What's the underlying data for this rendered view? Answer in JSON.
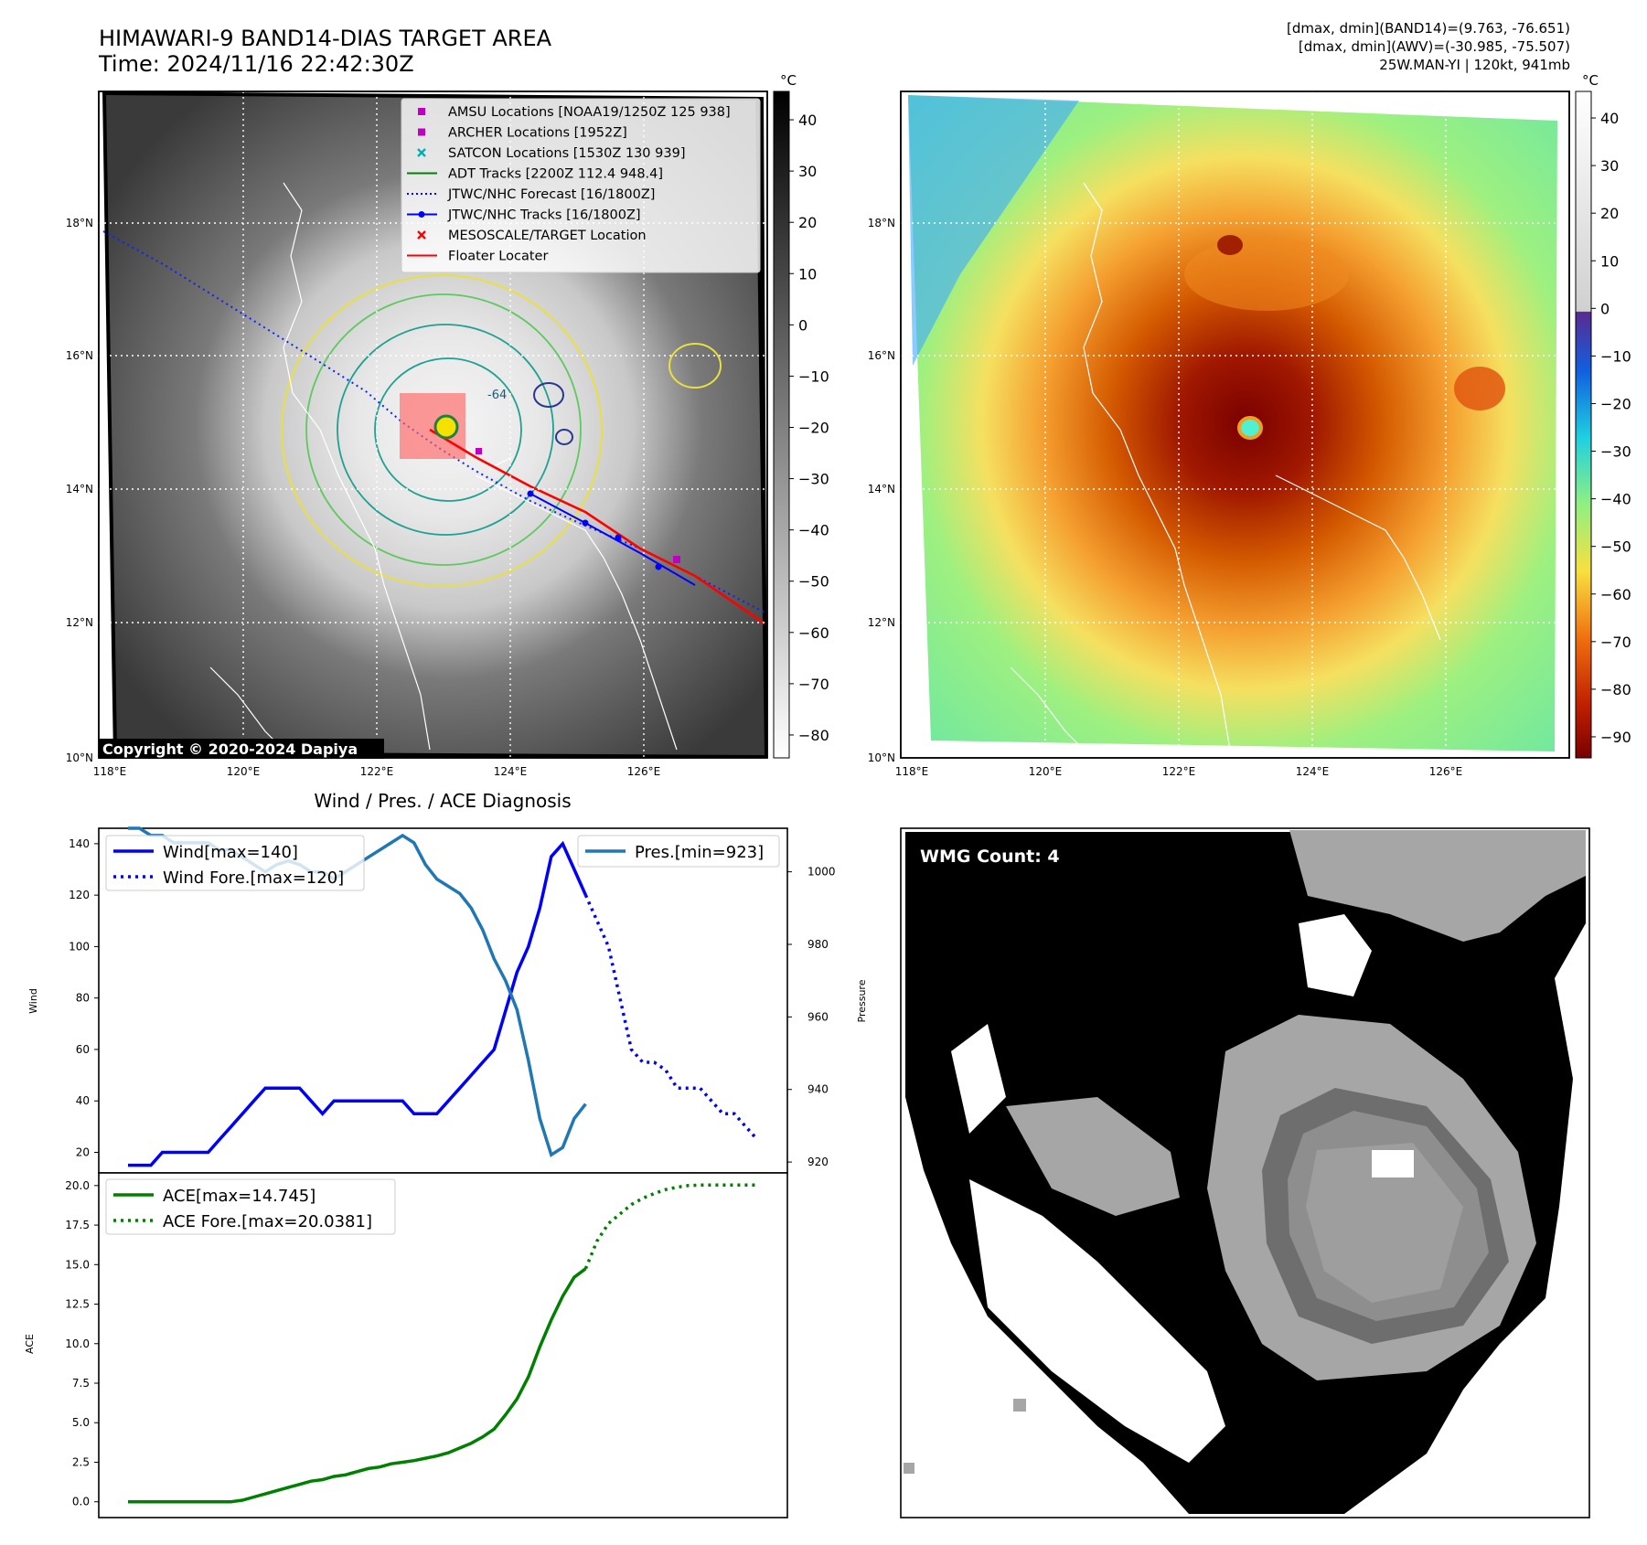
{
  "header": {
    "title_line1": "HIMAWARI-9 BAND14-DIAS TARGET AREA",
    "title_line2": "Time: 2024/11/16 22:42:30Z",
    "info_line1": "[dmax, dmin](BAND14)=(9.763, -76.651)",
    "info_line2": "[dmax, dmin](AWV)=(-30.985, -75.507)",
    "info_line3": "25W.MAN-YI | 120kt, 941mb"
  },
  "colors": {
    "wind": "#0000ff",
    "pressure": "#1f77b4",
    "ace": "#008000",
    "legend_amsu": "#c000c0",
    "legend_archer": "#c000c0",
    "legend_satcon": "#00b0b0",
    "legend_adt": "#008000",
    "legend_forecast": "#0000ff",
    "legend_tracks": "#0000ff",
    "legend_target": "#ff0000",
    "legend_floater": "#ff0000"
  },
  "map": {
    "lon_ticks": [
      "118°E",
      "120°E",
      "122°E",
      "124°E",
      "126°E"
    ],
    "lat_ticks": [
      "18°N",
      "16°N",
      "14°N",
      "12°N",
      "10°N"
    ],
    "copyright": "Copyright © 2020-2024 Dapiya",
    "legend": [
      {
        "label": "AMSU Locations [NOAA19/1250Z 125 938]",
        "marker": "square"
      },
      {
        "label": "ARCHER Locations [1952Z]",
        "marker": "square"
      },
      {
        "label": "SATCON Locations [1530Z 130 939]",
        "marker": "x"
      },
      {
        "label": "ADT Tracks [2200Z 112.4 948.4]",
        "marker": "line"
      },
      {
        "label": "JTWC/NHC Forecast [16/1800Z]",
        "marker": "dotted"
      },
      {
        "label": "JTWC/NHC Tracks [16/1800Z]",
        "marker": "line-dot"
      },
      {
        "label": "MESOSCALE/TARGET Location",
        "marker": "x"
      },
      {
        "label": "Floater Locater",
        "marker": "line"
      }
    ],
    "contour_label": "-64",
    "cb1_unit": "°C",
    "cb1_ticks": [
      "40",
      "30",
      "20",
      "10",
      "0",
      "−10",
      "−20",
      "−30",
      "−40",
      "−50",
      "−60",
      "−70",
      "−80"
    ],
    "cb2_unit": "°C",
    "cb2_ticks": [
      "40",
      "30",
      "20",
      "10",
      "0",
      "−10",
      "−20",
      "−30",
      "−40",
      "−50",
      "−60",
      "−70",
      "−80",
      "−90"
    ]
  },
  "wmg": {
    "label": "WMG Count: 4"
  },
  "chart_data": [
    {
      "type": "line",
      "title": "Wind / Pres. / ACE Diagnosis",
      "ylabel": "Wind",
      "ylabel_right": "Pressure",
      "ylim": [
        12,
        146
      ],
      "ylim_right": [
        917,
        1012
      ],
      "y_ticks": [
        20,
        40,
        60,
        80,
        100,
        120,
        140
      ],
      "y_ticks_right": [
        920,
        940,
        960,
        980,
        1000
      ],
      "series": [
        {
          "name": "Wind[max=140]",
          "axis": "left",
          "style": "solid",
          "values": [
            15,
            15,
            15,
            20,
            20,
            20,
            20,
            20,
            25,
            30,
            35,
            40,
            45,
            45,
            45,
            45,
            40,
            35,
            40,
            40,
            40,
            40,
            40,
            40,
            40,
            35,
            35,
            35,
            40,
            45,
            50,
            55,
            60,
            75,
            90,
            100,
            115,
            135,
            140,
            130,
            120
          ]
        },
        {
          "name": "Wind Fore.[max=120]",
          "axis": "left",
          "style": "dotted",
          "x_offset": 40,
          "values": [
            120,
            110,
            100,
            80,
            60,
            55,
            55,
            52,
            45,
            45,
            45,
            40,
            35,
            35,
            30,
            25
          ]
        },
        {
          "name": "Pres.[min=923]",
          "axis": "right",
          "style": "solid",
          "values": [
            1012,
            1012,
            1010,
            1010,
            1008,
            1008,
            1008,
            1008,
            1006,
            1006,
            1004,
            1002,
            1000,
            1002,
            1003,
            1002,
            1000,
            1000,
            998,
            1000,
            1002,
            1004,
            1006,
            1008,
            1010,
            1008,
            1002,
            998,
            996,
            994,
            990,
            984,
            976,
            970,
            962,
            948,
            932,
            922,
            924,
            932,
            936
          ]
        }
      ]
    },
    {
      "type": "line",
      "ylabel": "ACE",
      "ylim": [
        -1,
        20.8
      ],
      "y_ticks": [
        0.0,
        2.5,
        5.0,
        7.5,
        10.0,
        12.5,
        15.0,
        17.5,
        20.0
      ],
      "series": [
        {
          "name": "ACE[max=14.745]",
          "style": "solid",
          "values": [
            0.0,
            0.0,
            0.0,
            0.0,
            0.0,
            0.0,
            0.0,
            0.0,
            0.0,
            0.0,
            0.1,
            0.3,
            0.5,
            0.7,
            0.9,
            1.1,
            1.3,
            1.4,
            1.6,
            1.7,
            1.9,
            2.1,
            2.2,
            2.4,
            2.5,
            2.6,
            2.75,
            2.9,
            3.1,
            3.4,
            3.7,
            4.1,
            4.6,
            5.5,
            6.5,
            7.9,
            9.8,
            11.5,
            13.0,
            14.2,
            14.745
          ]
        },
        {
          "name": "ACE Fore.[max=20.0381]",
          "style": "dotted",
          "x_offset": 40,
          "values": [
            14.745,
            16.5,
            17.6,
            18.2,
            18.8,
            19.2,
            19.5,
            19.75,
            19.9,
            20.0,
            20.03,
            20.0381,
            20.0381,
            20.0381,
            20.0381,
            20.0381
          ]
        }
      ]
    }
  ]
}
